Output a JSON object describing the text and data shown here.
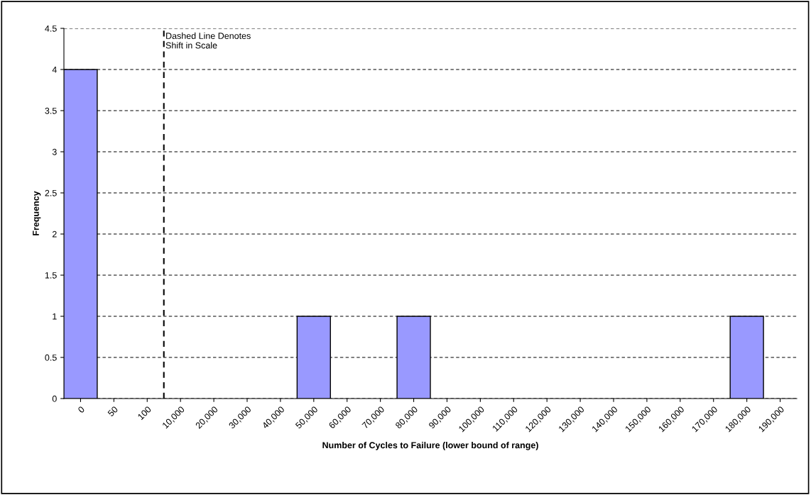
{
  "chart_data": {
    "type": "bar",
    "categories": [
      "0",
      "50",
      "100",
      "10,000",
      "20,000",
      "30,000",
      "40,000",
      "50,000",
      "60,000",
      "70,000",
      "80,000",
      "90,000",
      "100,000",
      "110,000",
      "120,000",
      "130,000",
      "140,000",
      "150,000",
      "160,000",
      "170,000",
      "180,000",
      "190,000"
    ],
    "values": [
      4,
      0,
      0,
      0,
      0,
      0,
      0,
      1,
      0,
      0,
      1,
      0,
      0,
      0,
      0,
      0,
      0,
      0,
      0,
      0,
      1,
      0
    ],
    "color": "#9999ff",
    "xlabel": "Number of Cycles to Failure (lower bound of range)",
    "ylabel": "Frequency",
    "ylim": [
      0,
      4.5
    ],
    "yticks": [
      0,
      0.5,
      1,
      1.5,
      2,
      2.5,
      3,
      3.5,
      4,
      4.5
    ],
    "grid": "y",
    "ref_lines": [
      {
        "axis": "x",
        "value": "10,000",
        "label": "Dashed Line Denotes\nShift in Scale",
        "color": "#000000",
        "line_style": "dashed"
      }
    ]
  }
}
